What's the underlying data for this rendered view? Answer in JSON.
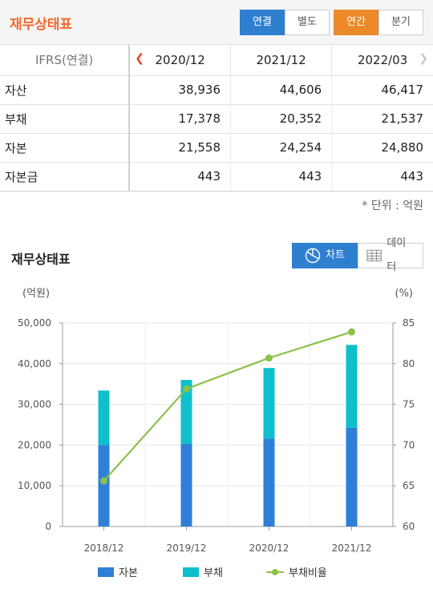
{
  "header": {
    "title": "재무상태표",
    "consol_tabs": [
      {
        "label": "연결",
        "active": true
      },
      {
        "label": "별도",
        "active": false
      }
    ],
    "period_tabs": [
      {
        "label": "연간",
        "active": true
      },
      {
        "label": "분기",
        "active": false
      }
    ]
  },
  "table": {
    "header_label": "IFRS(연결)",
    "years": [
      "2020/12",
      "2021/12",
      "2022/03"
    ],
    "rows": [
      {
        "label": "자산",
        "values": [
          "38,936",
          "44,606",
          "46,417"
        ]
      },
      {
        "label": "부채",
        "values": [
          "17,378",
          "20,352",
          "21,537"
        ]
      },
      {
        "label": "자본",
        "values": [
          "21,558",
          "24,254",
          "24,880"
        ]
      },
      {
        "label": "자본금",
        "values": [
          "443",
          "443",
          "443"
        ]
      }
    ],
    "unit": "* 단위 : 억원"
  },
  "chart_section": {
    "title": "재무상태표",
    "view_chart_label": "차트",
    "view_data_label": "데이터"
  },
  "chart_data": {
    "type": "bar",
    "stacked": true,
    "categories": [
      "2018/12",
      "2019/12",
      "2020/12",
      "2021/12"
    ],
    "series": [
      {
        "name": "자본",
        "kind": "bar",
        "axis": "left",
        "color": "#2f7fd8",
        "values": [
          20000,
          20300,
          21558,
          24254
        ]
      },
      {
        "name": "부채",
        "kind": "bar",
        "axis": "left",
        "color": "#0fbfcc",
        "values": [
          13400,
          15700,
          17378,
          20352
        ]
      },
      {
        "name": "부채비율",
        "kind": "line",
        "axis": "right",
        "color": "#8cc04b",
        "values": [
          65.6,
          76.9,
          80.7,
          83.9
        ]
      }
    ],
    "ylabel_left": "(억원)",
    "ylabel_right": "(%)",
    "ylim_left": [
      0,
      50000
    ],
    "ylim_right": [
      60,
      85
    ],
    "yticks_left": [
      "0",
      "10,000",
      "20,000",
      "30,000",
      "40,000",
      "50,000"
    ],
    "yticks_right": [
      "60",
      "65",
      "70",
      "75",
      "80",
      "85"
    ],
    "grid": true,
    "legend_position": "bottom"
  }
}
